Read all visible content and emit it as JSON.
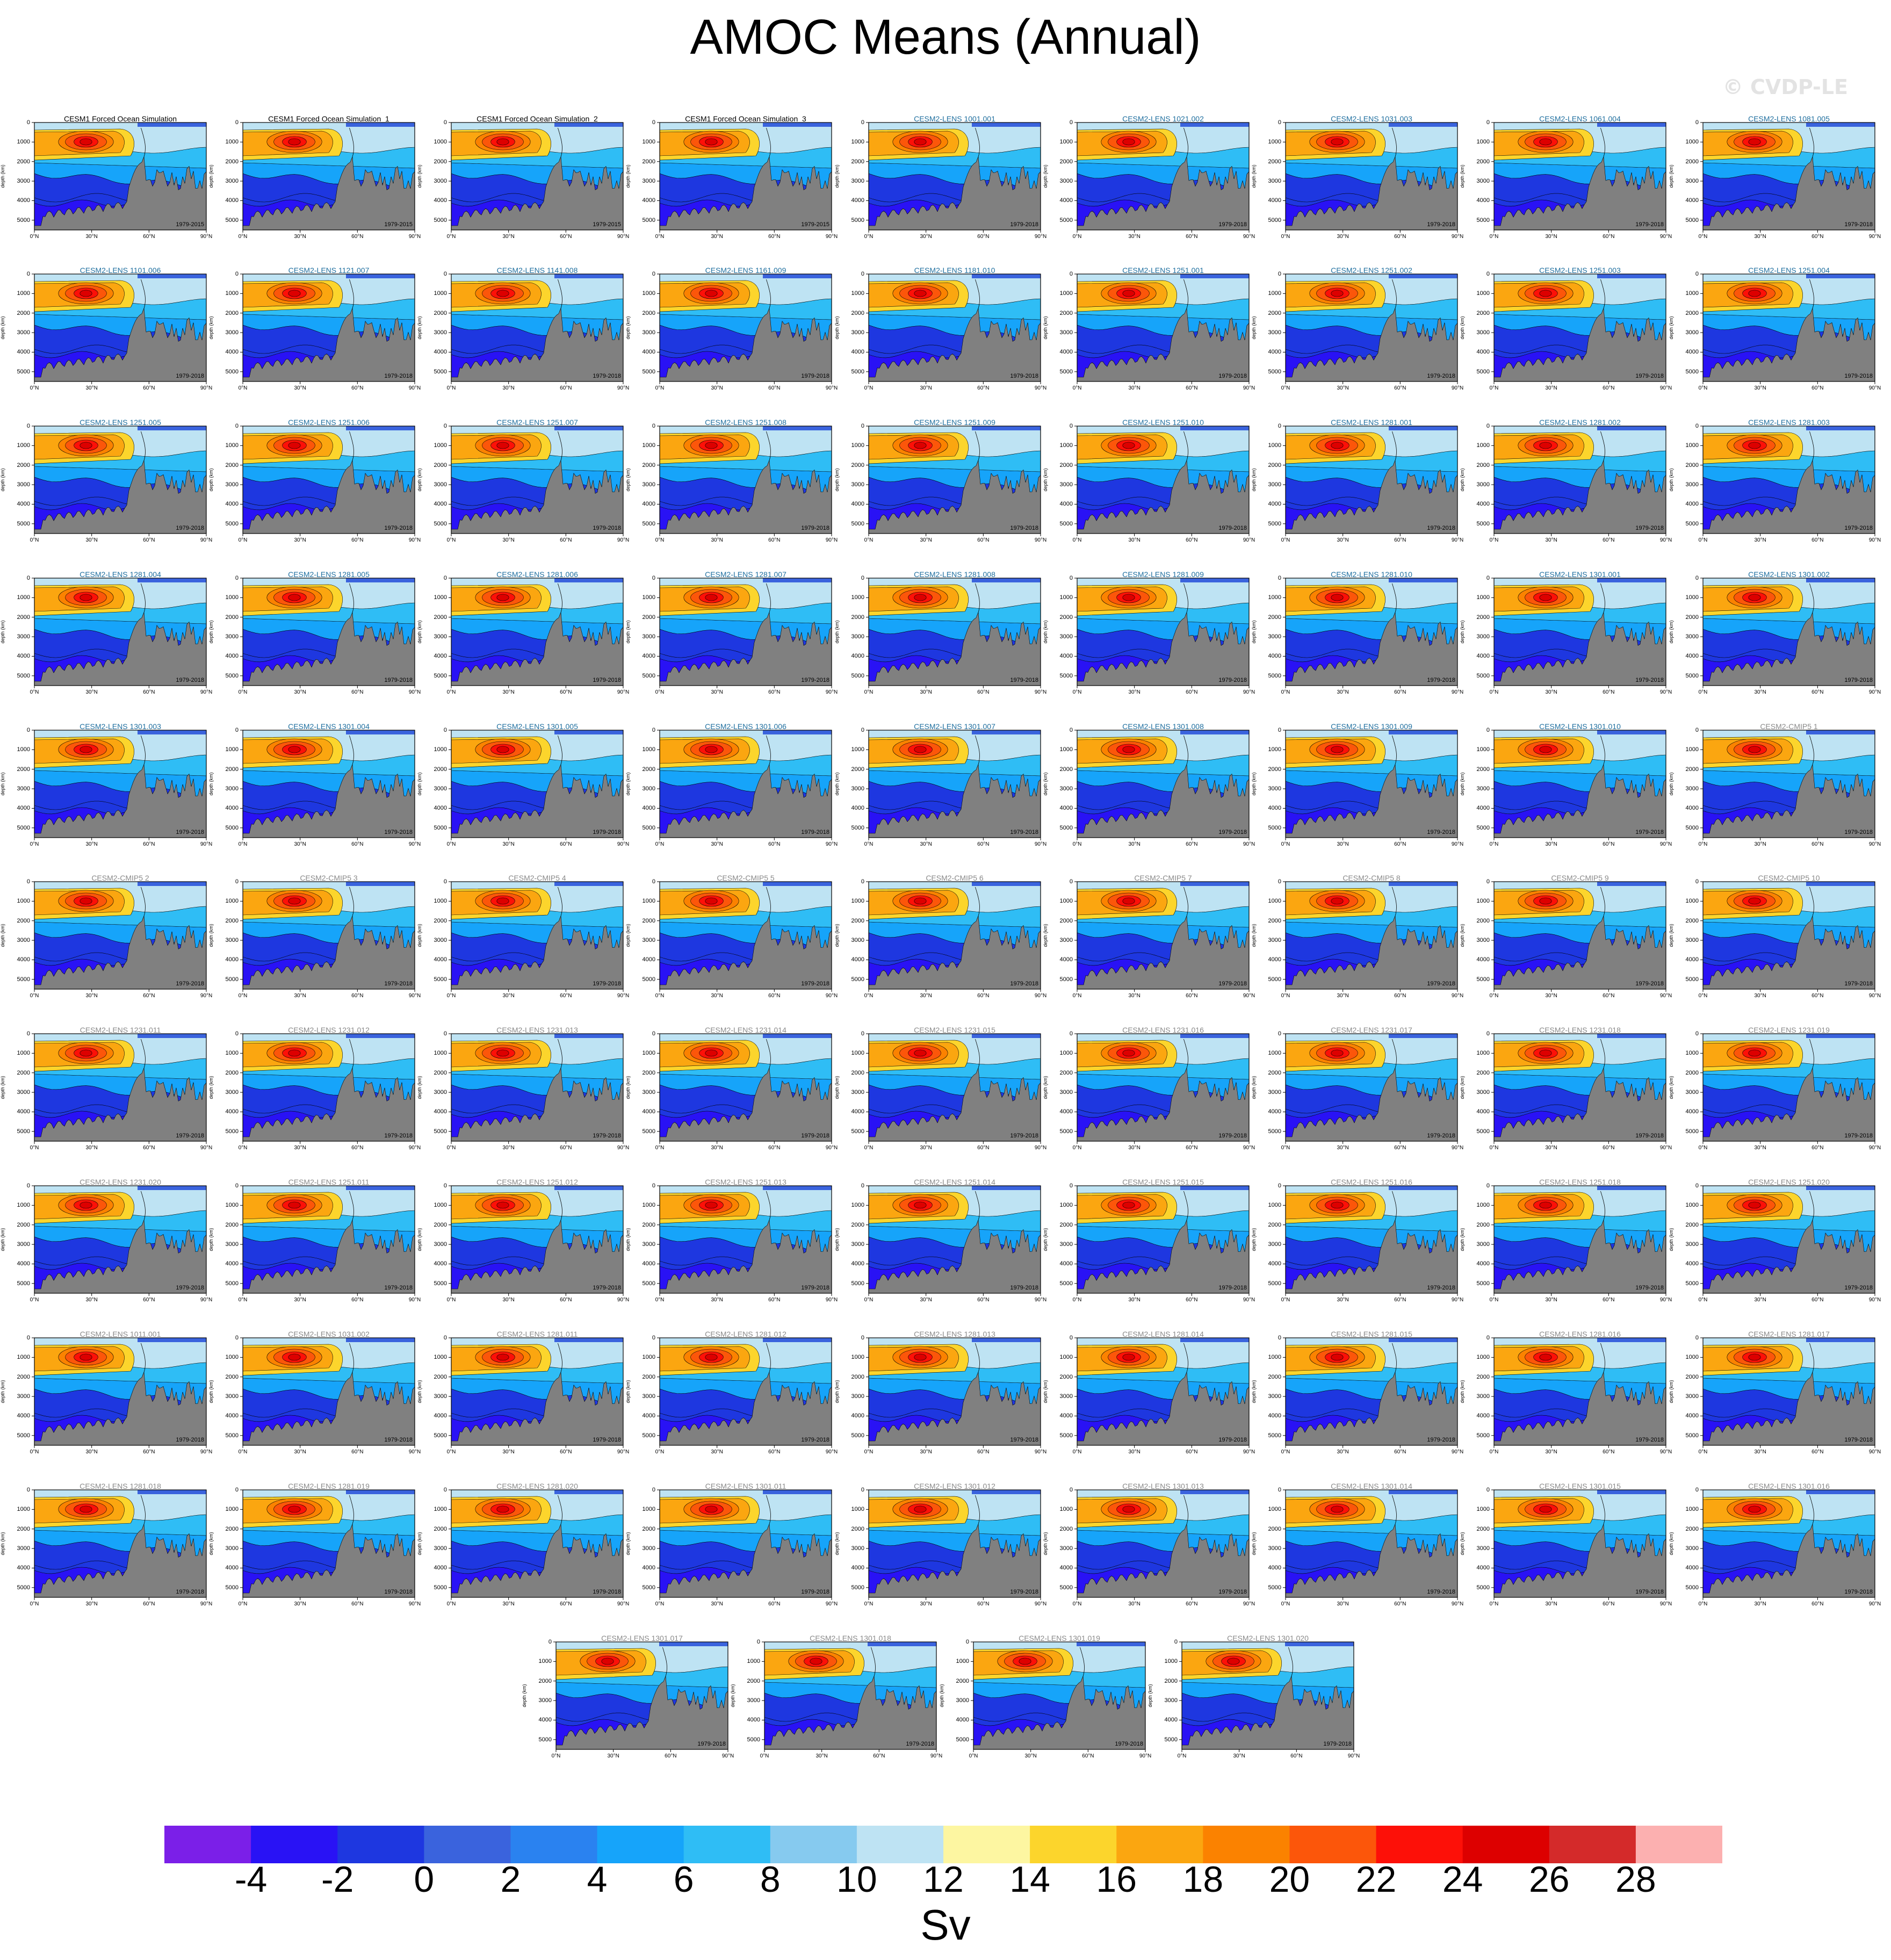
{
  "title": "AMOC Means (Annual)",
  "watermark": "© CVDP-LE",
  "axis": {
    "ylabel": "depth (km)",
    "yticks": [
      "1000",
      "2000",
      "3000",
      "4000",
      "5000"
    ],
    "xticks": [
      "0°N",
      "30°N",
      "60°N",
      "90°N"
    ]
  },
  "colorbar": {
    "colors": [
      "#7b1fe8",
      "#2912f5",
      "#1e37e0",
      "#3a63dd",
      "#2a82f0",
      "#16a4fa",
      "#2fbdf5",
      "#86caef",
      "#bee3f3",
      "#fdf6a1",
      "#fcd52c",
      "#fba610",
      "#fb8200",
      "#fc560a",
      "#fd1008",
      "#dd0000",
      "#d42a2a",
      "#fcb0b0"
    ],
    "labels": [
      "-4",
      "-2",
      "0",
      "2",
      "4",
      "6",
      "8",
      "10",
      "12",
      "14",
      "16",
      "18",
      "20",
      "22",
      "24",
      "26",
      "28"
    ],
    "unit": "Sv"
  },
  "colors": {
    "land": "#808080",
    "title_obs": "#000000",
    "title_lens": "#1f6f9f",
    "title_gray": "#8a8a8a"
  },
  "chart_data": {
    "type": "contour-panel-grid",
    "variable": "AMOC",
    "units": "Sv",
    "xlim": [
      0,
      90
    ],
    "ylim": [
      0,
      5500
    ],
    "panels": [
      {
        "title": "CESM1 Forced Ocean Simulation",
        "period": "1979-2015",
        "group": "obs"
      },
      {
        "title": "CESM1 Forced Ocean Simulation_1",
        "period": "1979-2015",
        "group": "obs"
      },
      {
        "title": "CESM1 Forced Ocean Simulation_2",
        "period": "1979-2015",
        "group": "obs"
      },
      {
        "title": "CESM1 Forced Ocean Simulation_3",
        "period": "1979-2015",
        "group": "obs"
      },
      {
        "title": "CESM2-LENS 1001.001",
        "period": "1979-2018",
        "group": "lens"
      },
      {
        "title": "CESM2-LENS 1021.002",
        "period": "1979-2018",
        "group": "lens"
      },
      {
        "title": "CESM2-LENS 1031.003",
        "period": "1979-2018",
        "group": "lens"
      },
      {
        "title": "CESM2-LENS 1061.004",
        "period": "1979-2018",
        "group": "lens"
      },
      {
        "title": "CESM2-LENS 1081.005",
        "period": "1979-2018",
        "group": "lens"
      },
      {
        "title": "CESM2-LENS 1101.006",
        "period": "1979-2018",
        "group": "lens"
      },
      {
        "title": "CESM2-LENS 1121.007",
        "period": "1979-2018",
        "group": "lens"
      },
      {
        "title": "CESM2-LENS 1141.008",
        "period": "1979-2018",
        "group": "lens"
      },
      {
        "title": "CESM2-LENS 1161.009",
        "period": "1979-2018",
        "group": "lens"
      },
      {
        "title": "CESM2-LENS 1181.010",
        "period": "1979-2018",
        "group": "lens"
      },
      {
        "title": "CESM2-LENS 1251.001",
        "period": "1979-2018",
        "group": "lens"
      },
      {
        "title": "CESM2-LENS 1251.002",
        "period": "1979-2018",
        "group": "lens"
      },
      {
        "title": "CESM2-LENS 1251.003",
        "period": "1979-2018",
        "group": "lens"
      },
      {
        "title": "CESM2-LENS 1251.004",
        "period": "1979-2018",
        "group": "lens"
      },
      {
        "title": "CESM2-LENS 1251.005",
        "period": "1979-2018",
        "group": "lens"
      },
      {
        "title": "CESM2-LENS 1251.006",
        "period": "1979-2018",
        "group": "lens"
      },
      {
        "title": "CESM2-LENS 1251.007",
        "period": "1979-2018",
        "group": "lens"
      },
      {
        "title": "CESM2-LENS 1251.008",
        "period": "1979-2018",
        "group": "lens"
      },
      {
        "title": "CESM2-LENS 1251.009",
        "period": "1979-2018",
        "group": "lens"
      },
      {
        "title": "CESM2-LENS 1251.010",
        "period": "1979-2018",
        "group": "lens"
      },
      {
        "title": "CESM2-LENS 1281.001",
        "period": "1979-2018",
        "group": "lens"
      },
      {
        "title": "CESM2-LENS 1281.002",
        "period": "1979-2018",
        "group": "lens"
      },
      {
        "title": "CESM2-LENS 1281.003",
        "period": "1979-2018",
        "group": "lens"
      },
      {
        "title": "CESM2-LENS 1281.004",
        "period": "1979-2018",
        "group": "lens"
      },
      {
        "title": "CESM2-LENS 1281.005",
        "period": "1979-2018",
        "group": "lens"
      },
      {
        "title": "CESM2-LENS 1281.006",
        "period": "1979-2018",
        "group": "lens"
      },
      {
        "title": "CESM2-LENS 1281.007",
        "period": "1979-2018",
        "group": "lens"
      },
      {
        "title": "CESM2-LENS 1281.008",
        "period": "1979-2018",
        "group": "lens"
      },
      {
        "title": "CESM2-LENS 1281.009",
        "period": "1979-2018",
        "group": "lens"
      },
      {
        "title": "CESM2-LENS 1281.010",
        "period": "1979-2018",
        "group": "lens"
      },
      {
        "title": "CESM2-LENS 1301.001",
        "period": "1979-2018",
        "group": "lens"
      },
      {
        "title": "CESM2-LENS 1301.002",
        "period": "1979-2018",
        "group": "lens"
      },
      {
        "title": "CESM2-LENS 1301.003",
        "period": "1979-2018",
        "group": "lens"
      },
      {
        "title": "CESM2-LENS 1301.004",
        "period": "1979-2018",
        "group": "lens"
      },
      {
        "title": "CESM2-LENS 1301.005",
        "period": "1979-2018",
        "group": "lens"
      },
      {
        "title": "CESM2-LENS 1301.006",
        "period": "1979-2018",
        "group": "lens"
      },
      {
        "title": "CESM2-LENS 1301.007",
        "period": "1979-2018",
        "group": "lens"
      },
      {
        "title": "CESM2-LENS 1301.008",
        "period": "1979-2018",
        "group": "lens"
      },
      {
        "title": "CESM2-LENS 1301.009",
        "period": "1979-2018",
        "group": "lens"
      },
      {
        "title": "CESM2-LENS 1301.010",
        "period": "1979-2018",
        "group": "lens"
      },
      {
        "title": "CESM2-CMIP5 1",
        "period": "1979-2018",
        "group": "gray"
      },
      {
        "title": "CESM2-CMIP5 2",
        "period": "1979-2018",
        "group": "gray"
      },
      {
        "title": "CESM2-CMIP5 3",
        "period": "1979-2018",
        "group": "gray"
      },
      {
        "title": "CESM2-CMIP5 4",
        "period": "1979-2018",
        "group": "gray"
      },
      {
        "title": "CESM2-CMIP5 5",
        "period": "1979-2018",
        "group": "gray"
      },
      {
        "title": "CESM2-CMIP5 6",
        "period": "1979-2018",
        "group": "gray"
      },
      {
        "title": "CESM2-CMIP5 7",
        "period": "1979-2018",
        "group": "gray"
      },
      {
        "title": "CESM2-CMIP5 8",
        "period": "1979-2018",
        "group": "gray"
      },
      {
        "title": "CESM2-CMIP5 9",
        "period": "1979-2018",
        "group": "gray"
      },
      {
        "title": "CESM2-CMIP5 10",
        "period": "1979-2018",
        "group": "gray"
      },
      {
        "title": "CESM2-LENS 1231.011",
        "period": "1979-2018",
        "group": "gray"
      },
      {
        "title": "CESM2-LENS 1231.012",
        "period": "1979-2018",
        "group": "gray"
      },
      {
        "title": "CESM2-LENS 1231.013",
        "period": "1979-2018",
        "group": "gray"
      },
      {
        "title": "CESM2-LENS 1231.014",
        "period": "1979-2018",
        "group": "gray"
      },
      {
        "title": "CESM2-LENS 1231.015",
        "period": "1979-2018",
        "group": "gray"
      },
      {
        "title": "CESM2-LENS 1231.016",
        "period": "1979-2018",
        "group": "gray"
      },
      {
        "title": "CESM2-LENS 1231.017",
        "period": "1979-2018",
        "group": "gray"
      },
      {
        "title": "CESM2-LENS 1231.018",
        "period": "1979-2018",
        "group": "gray"
      },
      {
        "title": "CESM2-LENS 1231.019",
        "period": "1979-2018",
        "group": "gray"
      },
      {
        "title": "CESM2-LENS 1231.020",
        "period": "1979-2018",
        "group": "gray"
      },
      {
        "title": "CESM2-LENS 1251.011",
        "period": "1979-2018",
        "group": "gray"
      },
      {
        "title": "CESM2-LENS 1251.012",
        "period": "1979-2018",
        "group": "gray"
      },
      {
        "title": "CESM2-LENS 1251.013",
        "period": "1979-2018",
        "group": "gray"
      },
      {
        "title": "CESM2-LENS 1251.014",
        "period": "1979-2018",
        "group": "gray"
      },
      {
        "title": "CESM2-LENS 1251.015",
        "period": "1979-2018",
        "group": "gray"
      },
      {
        "title": "CESM2-LENS 1251.016",
        "period": "1979-2018",
        "group": "gray"
      },
      {
        "title": "CESM2-LENS 1251.018",
        "period": "1979-2018",
        "group": "gray"
      },
      {
        "title": "CESM2-LENS 1251.020",
        "period": "1979-2018",
        "group": "gray"
      },
      {
        "title": "CESM2-LENS 1011.001",
        "period": "1979-2018",
        "group": "gray"
      },
      {
        "title": "CESM2-LENS 1031.002",
        "period": "1979-2018",
        "group": "gray"
      },
      {
        "title": "CESM2-LENS 1281.011",
        "period": "1979-2018",
        "group": "gray"
      },
      {
        "title": "CESM2-LENS 1281.012",
        "period": "1979-2018",
        "group": "gray"
      },
      {
        "title": "CESM2-LENS 1281.013",
        "period": "1979-2018",
        "group": "gray"
      },
      {
        "title": "CESM2-LENS 1281.014",
        "period": "1979-2018",
        "group": "gray"
      },
      {
        "title": "CESM2-LENS 1281.015",
        "period": "1979-2018",
        "group": "gray"
      },
      {
        "title": "CESM2-LENS 1281.016",
        "period": "1979-2018",
        "group": "gray"
      },
      {
        "title": "CESM2-LENS 1281.017",
        "period": "1979-2018",
        "group": "gray"
      },
      {
        "title": "CESM2-LENS 1281.018",
        "period": "1979-2018",
        "group": "gray"
      },
      {
        "title": "CESM2-LENS 1281.019",
        "period": "1979-2018",
        "group": "gray"
      },
      {
        "title": "CESM2-LENS 1281.020",
        "period": "1979-2018",
        "group": "gray"
      },
      {
        "title": "CESM2-LENS 1301.011",
        "period": "1979-2018",
        "group": "gray"
      },
      {
        "title": "CESM2-LENS 1301.012",
        "period": "1979-2018",
        "group": "gray"
      },
      {
        "title": "CESM2-LENS 1301.013",
        "period": "1979-2018",
        "group": "gray"
      },
      {
        "title": "CESM2-LENS 1301.014",
        "period": "1979-2018",
        "group": "gray"
      },
      {
        "title": "CESM2-LENS 1301.015",
        "period": "1979-2018",
        "group": "gray"
      },
      {
        "title": "CESM2-LENS 1301.016",
        "period": "1979-2018",
        "group": "gray"
      },
      {
        "title": "CESM2-LENS 1301.017",
        "period": "1979-2018",
        "group": "gray"
      },
      {
        "title": "CESM2-LENS 1301.018",
        "period": "1979-2018",
        "group": "gray"
      },
      {
        "title": "CESM2-LENS 1301.019",
        "period": "1979-2018",
        "group": "gray"
      },
      {
        "title": "CESM2-LENS 1301.020",
        "period": "1979-2018",
        "group": "gray"
      }
    ]
  }
}
